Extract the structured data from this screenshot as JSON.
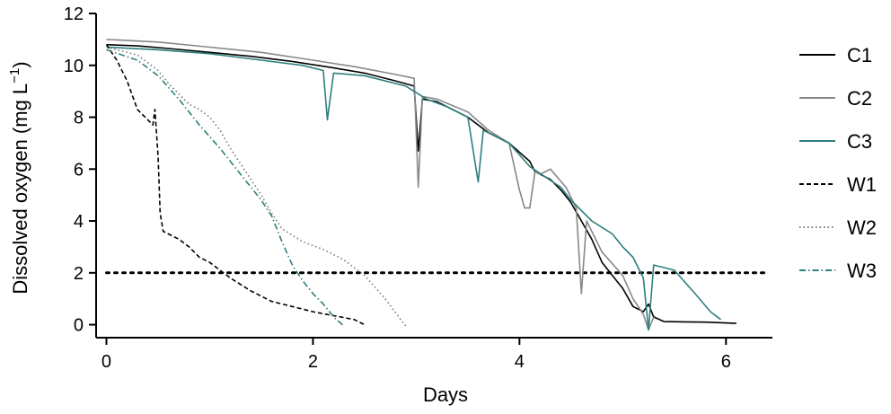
{
  "chart_data": {
    "type": "line",
    "xlabel": "Days",
    "ylabel": "Dissolved oxygen (mg L",
    "ylabel_unit_sup": "−1",
    "ylabel_close": ")",
    "xlim": [
      -0.1,
      6.45
    ],
    "ylim": [
      -0.5,
      12
    ],
    "x_ticks": [
      0,
      2,
      4,
      6
    ],
    "y_ticks": [
      0,
      2,
      4,
      6,
      8,
      10,
      12
    ],
    "grid": false,
    "legend_position": "right",
    "reference_line": {
      "y": 2,
      "style": "dotted",
      "color": "#000000"
    },
    "series": [
      {
        "name": "C1",
        "color": "#000000",
        "dash": "solid",
        "points": [
          [
            0,
            10.8
          ],
          [
            0.3,
            10.75
          ],
          [
            0.6,
            10.65
          ],
          [
            1.0,
            10.5
          ],
          [
            1.4,
            10.35
          ],
          [
            1.8,
            10.15
          ],
          [
            2.2,
            9.9
          ],
          [
            2.5,
            9.7
          ],
          [
            2.8,
            9.4
          ],
          [
            2.98,
            9.2
          ],
          [
            3.02,
            6.7
          ],
          [
            3.06,
            8.7
          ],
          [
            3.2,
            8.6
          ],
          [
            3.5,
            8.0
          ],
          [
            3.7,
            7.4
          ],
          [
            3.9,
            7.0
          ],
          [
            4.1,
            6.3
          ],
          [
            4.15,
            5.9
          ],
          [
            4.3,
            5.6
          ],
          [
            4.4,
            5.2
          ],
          [
            4.5,
            4.7
          ],
          [
            4.6,
            4.0
          ],
          [
            4.7,
            3.3
          ],
          [
            4.8,
            2.4
          ],
          [
            4.9,
            1.9
          ],
          [
            5.0,
            1.4
          ],
          [
            5.1,
            0.7
          ],
          [
            5.2,
            0.5
          ],
          [
            5.25,
            0.8
          ],
          [
            5.3,
            0.3
          ],
          [
            5.4,
            0.12
          ],
          [
            5.8,
            0.1
          ],
          [
            6.1,
            0.05
          ]
        ]
      },
      {
        "name": "C2",
        "color": "#888888",
        "dash": "solid",
        "points": [
          [
            0,
            11.0
          ],
          [
            0.5,
            10.9
          ],
          [
            1.0,
            10.7
          ],
          [
            1.5,
            10.5
          ],
          [
            2.0,
            10.2
          ],
          [
            2.4,
            9.95
          ],
          [
            2.8,
            9.65
          ],
          [
            2.98,
            9.5
          ],
          [
            3.02,
            5.3
          ],
          [
            3.06,
            8.8
          ],
          [
            3.2,
            8.7
          ],
          [
            3.5,
            8.2
          ],
          [
            3.7,
            7.5
          ],
          [
            3.9,
            7.0
          ],
          [
            4.0,
            5.2
          ],
          [
            4.05,
            4.5
          ],
          [
            4.1,
            4.5
          ],
          [
            4.15,
            5.9
          ],
          [
            4.2,
            5.8
          ],
          [
            4.3,
            6.0
          ],
          [
            4.45,
            5.3
          ],
          [
            4.55,
            4.5
          ],
          [
            4.6,
            1.2
          ],
          [
            4.65,
            4.0
          ],
          [
            4.8,
            2.8
          ],
          [
            5.0,
            1.9
          ],
          [
            5.1,
            1.0
          ],
          [
            5.2,
            0.4
          ],
          [
            5.25,
            -0.2
          ],
          [
            5.3,
            0.3
          ]
        ]
      },
      {
        "name": "C3",
        "color": "#2e7f7d",
        "dash": "solid",
        "points": [
          [
            0,
            10.7
          ],
          [
            0.5,
            10.6
          ],
          [
            1.0,
            10.45
          ],
          [
            1.5,
            10.2
          ],
          [
            1.9,
            10.0
          ],
          [
            2.1,
            9.8
          ],
          [
            2.14,
            7.9
          ],
          [
            2.2,
            9.7
          ],
          [
            2.5,
            9.6
          ],
          [
            2.9,
            9.2
          ],
          [
            3.1,
            8.7
          ],
          [
            3.3,
            8.4
          ],
          [
            3.5,
            8.0
          ],
          [
            3.6,
            5.5
          ],
          [
            3.65,
            7.5
          ],
          [
            3.9,
            7.0
          ],
          [
            4.1,
            6.1
          ],
          [
            4.4,
            5.3
          ],
          [
            4.5,
            4.8
          ],
          [
            4.7,
            4.0
          ],
          [
            4.9,
            3.5
          ],
          [
            5.0,
            3.0
          ],
          [
            5.1,
            2.6
          ],
          [
            5.2,
            1.8
          ],
          [
            5.25,
            -0.2
          ],
          [
            5.3,
            2.3
          ],
          [
            5.5,
            2.1
          ],
          [
            5.7,
            1.2
          ],
          [
            5.85,
            0.5
          ],
          [
            5.95,
            0.2
          ]
        ]
      },
      {
        "name": "W1",
        "color": "#000000",
        "dash": "dashed",
        "points": [
          [
            0,
            10.8
          ],
          [
            0.1,
            10.2
          ],
          [
            0.2,
            9.4
          ],
          [
            0.3,
            8.3
          ],
          [
            0.4,
            7.9
          ],
          [
            0.45,
            7.7
          ],
          [
            0.47,
            8.3
          ],
          [
            0.5,
            6.5
          ],
          [
            0.52,
            4.3
          ],
          [
            0.55,
            3.6
          ],
          [
            0.7,
            3.3
          ],
          [
            0.8,
            3.0
          ],
          [
            0.9,
            2.6
          ],
          [
            1.0,
            2.4
          ],
          [
            1.2,
            1.8
          ],
          [
            1.4,
            1.3
          ],
          [
            1.6,
            0.9
          ],
          [
            1.8,
            0.7
          ],
          [
            2.0,
            0.5
          ],
          [
            2.2,
            0.35
          ],
          [
            2.4,
            0.2
          ],
          [
            2.5,
            0.0
          ]
        ]
      },
      {
        "name": "W2",
        "color": "#777777",
        "dash": "dotted",
        "points": [
          [
            0,
            10.7
          ],
          [
            0.3,
            10.4
          ],
          [
            0.5,
            9.8
          ],
          [
            0.6,
            9.3
          ],
          [
            0.7,
            8.9
          ],
          [
            0.8,
            8.5
          ],
          [
            0.9,
            8.3
          ],
          [
            1.0,
            8.0
          ],
          [
            1.1,
            7.5
          ],
          [
            1.2,
            6.8
          ],
          [
            1.3,
            6.2
          ],
          [
            1.4,
            5.6
          ],
          [
            1.5,
            5.0
          ],
          [
            1.6,
            4.3
          ],
          [
            1.7,
            3.7
          ],
          [
            1.9,
            3.2
          ],
          [
            2.1,
            2.9
          ],
          [
            2.3,
            2.5
          ],
          [
            2.5,
            1.9
          ],
          [
            2.7,
            1.0
          ],
          [
            2.85,
            0.2
          ],
          [
            2.9,
            -0.05
          ]
        ]
      },
      {
        "name": "W3",
        "color": "#2e7f7d",
        "dash": "dashdot",
        "points": [
          [
            0,
            10.6
          ],
          [
            0.3,
            10.2
          ],
          [
            0.5,
            9.6
          ],
          [
            0.7,
            8.7
          ],
          [
            0.9,
            7.7
          ],
          [
            1.1,
            6.8
          ],
          [
            1.3,
            5.8
          ],
          [
            1.5,
            4.8
          ],
          [
            1.6,
            4.2
          ],
          [
            1.7,
            3.2
          ],
          [
            1.8,
            2.3
          ],
          [
            1.9,
            1.7
          ],
          [
            2.0,
            1.2
          ],
          [
            2.1,
            0.8
          ],
          [
            2.2,
            0.3
          ],
          [
            2.3,
            -0.05
          ]
        ]
      }
    ]
  }
}
